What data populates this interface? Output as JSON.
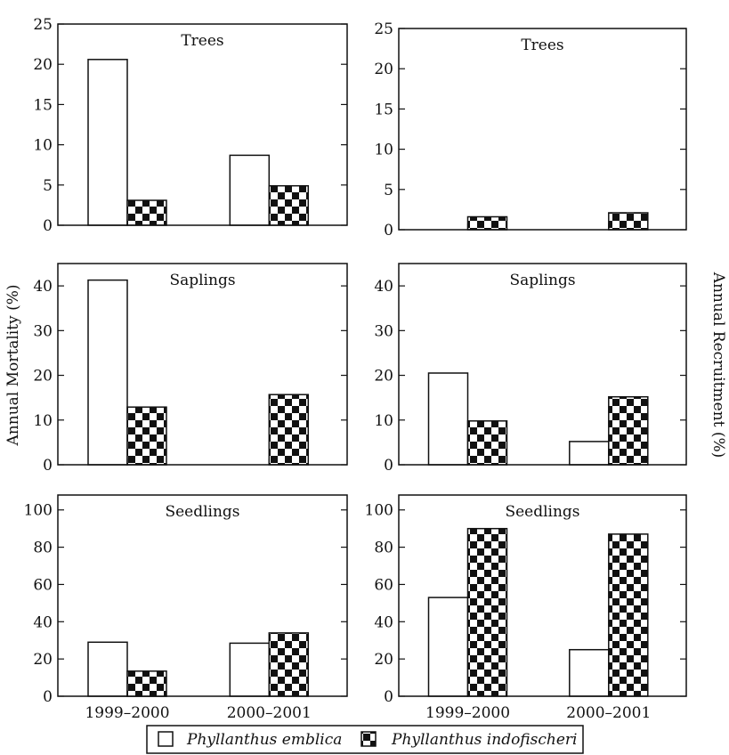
{
  "figure": {
    "left_axis_label": "Annual Mortality (%)",
    "right_axis_label": "Annual Recruitment (%)",
    "legend": [
      {
        "label": "Phyllanthus emblica",
        "fill": "white"
      },
      {
        "label": "Phyllanthus indofischeri",
        "fill": "checker"
      }
    ]
  },
  "chart_data": [
    {
      "type": "bar",
      "title": "Trees",
      "measure": "Annual Mortality (%)",
      "categories": [
        "1999–2000",
        "2000–2001"
      ],
      "ylim": [
        0,
        25
      ],
      "yticks": [
        0,
        5,
        10,
        15,
        20,
        25
      ],
      "series": [
        {
          "name": "Phyllanthus emblica",
          "values": [
            20.6,
            8.7
          ]
        },
        {
          "name": "Phyllanthus indofischeri",
          "values": [
            3.1,
            4.9
          ]
        }
      ]
    },
    {
      "type": "bar",
      "title": "Trees",
      "measure": "Annual Recruitment (%)",
      "categories": [
        "1999–2000",
        "2000–2001"
      ],
      "ylim": [
        0,
        25
      ],
      "yticks": [
        0,
        5,
        10,
        15,
        20,
        25
      ],
      "series": [
        {
          "name": "Phyllanthus emblica",
          "values": [
            0,
            0
          ]
        },
        {
          "name": "Phyllanthus indofischeri",
          "values": [
            1.6,
            2.1
          ]
        }
      ]
    },
    {
      "type": "bar",
      "title": "Saplings",
      "measure": "Annual Mortality (%)",
      "categories": [
        "1999–2000",
        "2000–2001"
      ],
      "ylim": [
        0,
        45
      ],
      "yticks": [
        0,
        10,
        20,
        30,
        40
      ],
      "series": [
        {
          "name": "Phyllanthus emblica",
          "values": [
            41.3,
            0
          ]
        },
        {
          "name": "Phyllanthus indofischeri",
          "values": [
            12.9,
            15.7
          ]
        }
      ]
    },
    {
      "type": "bar",
      "title": "Saplings",
      "measure": "Annual Recruitment (%)",
      "categories": [
        "1999–2000",
        "2000–2001"
      ],
      "ylim": [
        0,
        45
      ],
      "yticks": [
        0,
        10,
        20,
        30,
        40
      ],
      "series": [
        {
          "name": "Phyllanthus emblica",
          "values": [
            20.5,
            5.2
          ]
        },
        {
          "name": "Phyllanthus indofischeri",
          "values": [
            9.8,
            15.2
          ]
        }
      ]
    },
    {
      "type": "bar",
      "title": "Seedlings",
      "measure": "Annual Mortality (%)",
      "categories": [
        "1999–2000",
        "2000–2001"
      ],
      "ylim": [
        0,
        108
      ],
      "yticks": [
        0,
        20,
        40,
        60,
        80,
        100
      ],
      "series": [
        {
          "name": "Phyllanthus emblica",
          "values": [
            29,
            28.5
          ]
        },
        {
          "name": "Phyllanthus indofischeri",
          "values": [
            13.5,
            34
          ]
        }
      ]
    },
    {
      "type": "bar",
      "title": "Seedlings",
      "measure": "Annual Recruitment (%)",
      "categories": [
        "1999–2000",
        "2000–2001"
      ],
      "ylim": [
        0,
        108
      ],
      "yticks": [
        0,
        20,
        40,
        60,
        80,
        100
      ],
      "series": [
        {
          "name": "Phyllanthus emblica",
          "values": [
            53,
            25
          ]
        },
        {
          "name": "Phyllanthus indofischeri",
          "values": [
            90,
            87
          ]
        }
      ]
    }
  ]
}
